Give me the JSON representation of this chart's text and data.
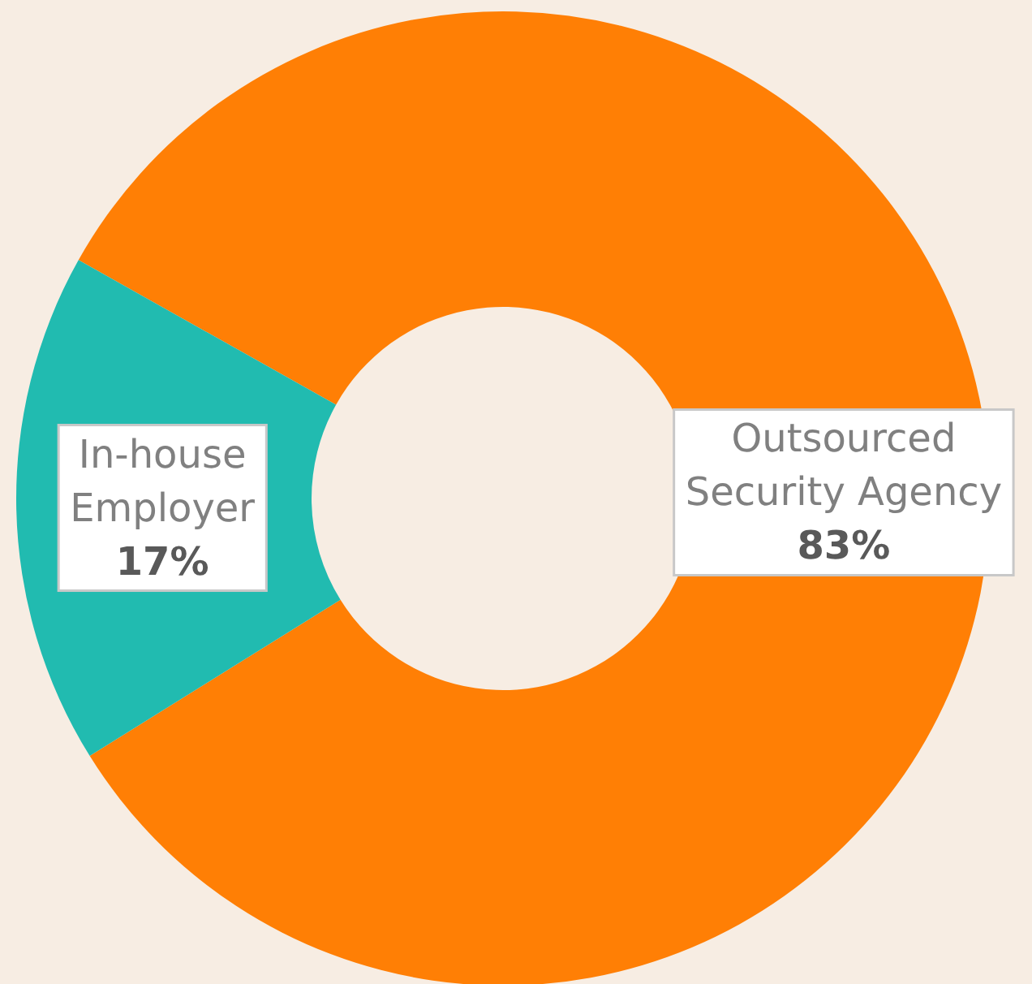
{
  "chart_data": {
    "type": "donut",
    "categories": [
      "Outsourced Security Agency",
      "In-house Employer"
    ],
    "values": [
      83,
      17
    ],
    "colors": [
      "#ff7f05",
      "#21bbb0"
    ],
    "value_labels": [
      "83%",
      "17%"
    ]
  }
}
